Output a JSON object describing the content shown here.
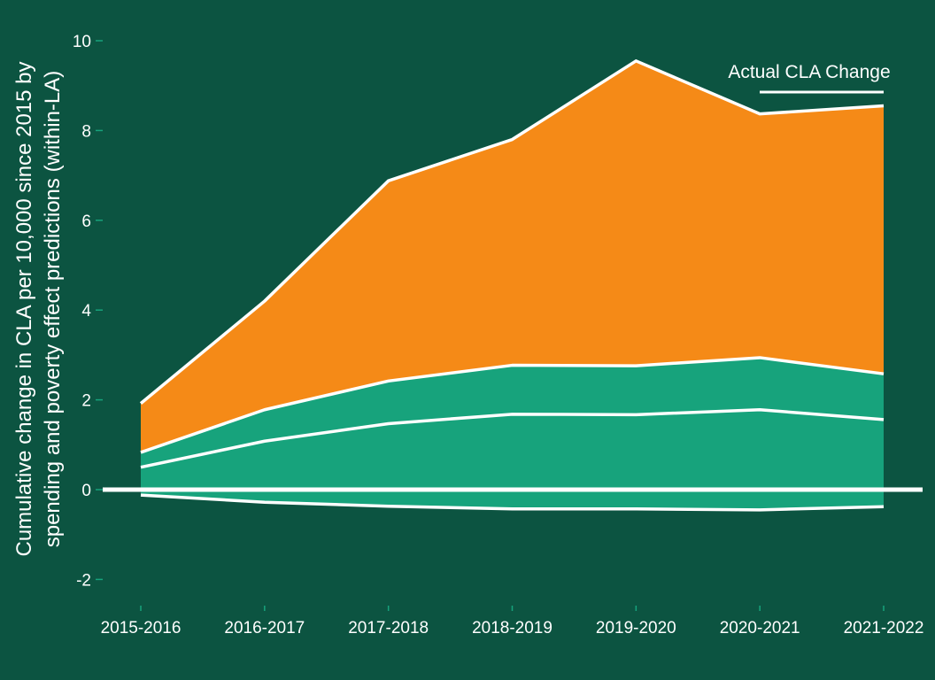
{
  "chart_data": {
    "type": "area",
    "categories": [
      "2015-2016",
      "2016-2017",
      "2017-2018",
      "2018-2019",
      "2019-2020",
      "2020-2021",
      "2021-2022"
    ],
    "ylabel_line1": "Cumulative change in CLA per 10,000 since 2015 by",
    "ylabel_line2": "spending and poverty effect predictions (within-LA)",
    "ylim": [
      -2.6,
      10.3
    ],
    "yticks": [
      "10",
      "8",
      "6",
      "4",
      "2",
      "0",
      "-2"
    ],
    "legend": {
      "label": "Actual CLA Change",
      "placement": "top-right"
    },
    "grid": false,
    "series": [
      {
        "values": [
          -0.12,
          -0.28,
          -0.37,
          -0.43,
          -0.43,
          -0.45,
          -0.38
        ],
        "color": "#17a37c"
      },
      {
        "values": [
          0.5,
          1.08,
          1.47,
          1.68,
          1.67,
          1.78,
          1.56
        ],
        "color": "#17a37c"
      },
      {
        "values": [
          0.83,
          1.78,
          2.42,
          2.77,
          2.76,
          2.94,
          2.58
        ],
        "color": "#17a37c"
      },
      {
        "name": "Actual CLA Change",
        "values": [
          1.92,
          4.2,
          6.88,
          7.8,
          9.55,
          8.37,
          8.55
        ],
        "color": "#f58a17"
      }
    ]
  }
}
